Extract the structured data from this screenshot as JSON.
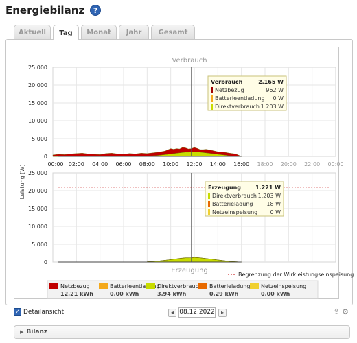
{
  "page": {
    "title": "Energiebilanz",
    "help_icon": "help-icon"
  },
  "tabs": [
    {
      "label": "Aktuell",
      "active": false
    },
    {
      "label": "Tag",
      "active": true
    },
    {
      "label": "Monat",
      "active": false
    },
    {
      "label": "Jahr",
      "active": false
    },
    {
      "label": "Gesamt",
      "active": false
    }
  ],
  "chart": {
    "top_title": "Verbrauch",
    "bottom_title": "Erzeugung",
    "ylabel": "Leistung [W]",
    "y_ticks": [
      "25.000",
      "20.000",
      "15.000",
      "10.000",
      "5.000",
      "0"
    ],
    "x_ticks": [
      "00:00",
      "02:00",
      "04:00",
      "06:00",
      "08:00",
      "10:00",
      "12:00",
      "14:00",
      "16:00",
      "18:00",
      "20:00",
      "22:00",
      "00:00"
    ],
    "limit_label": "Begrenzung der Wirkleistungseinspeisung",
    "limit_value": 21000,
    "cursor_time": "11:45",
    "colors": {
      "netzbezug": "#c00000",
      "batterieentladung": "#f4a91c",
      "direktverbrauch": "#c8dc00",
      "batterieladung": "#e86a00",
      "netzeinspeisung": "#f0d030",
      "limit": "#c00000"
    }
  },
  "tooltip_consumption": {
    "title": "Verbrauch",
    "total": "2.165 W",
    "rows": [
      {
        "label": "Netzbezug",
        "value": "962 W",
        "color": "#a00000"
      },
      {
        "label": "Batterieentladung",
        "value": "0 W",
        "color": "#f4a91c"
      },
      {
        "label": "Direktverbrauch",
        "value": "1.203 W",
        "color": "#c8dc00"
      }
    ]
  },
  "tooltip_generation": {
    "title": "Erzeugung",
    "total": "1.221 W",
    "rows": [
      {
        "label": "Direktverbrauch",
        "value": "1.203 W",
        "color": "#c8dc00"
      },
      {
        "label": "Batterieladung",
        "value": "18 W",
        "color": "#e86a00"
      },
      {
        "label": "Netzeinspeisung",
        "value": "0 W",
        "color": "#f0d030"
      }
    ]
  },
  "legend": [
    {
      "label": "Netzbezug",
      "value": "12,21 kWh",
      "color": "#c00000"
    },
    {
      "label": "Batterieentladung",
      "value": "0,00 kWh",
      "color": "#f4a91c"
    },
    {
      "label": "Direktverbrauch",
      "value": "3,94 kWh",
      "color": "#c8dc00"
    },
    {
      "label": "Batterieladung",
      "value": "0,29 kWh",
      "color": "#e86a00"
    },
    {
      "label": "Netzeinspeisung",
      "value": "0,00 kWh",
      "color": "#f0d030"
    }
  ],
  "chart_data": [
    {
      "type": "area",
      "title": "Verbrauch",
      "ylabel": "Leistung [W]",
      "ylim": [
        0,
        25000
      ],
      "x": [
        "00:00",
        "00:30",
        "01:00",
        "01:30",
        "02:00",
        "02:30",
        "03:00",
        "03:30",
        "04:00",
        "04:30",
        "05:00",
        "05:30",
        "06:00",
        "06:30",
        "07:00",
        "07:30",
        "08:00",
        "08:30",
        "09:00",
        "09:30",
        "10:00",
        "10:15",
        "10:30",
        "10:45",
        "11:00",
        "11:15",
        "11:30",
        "11:45",
        "12:00",
        "12:15",
        "12:30",
        "12:45",
        "13:00",
        "13:30",
        "14:00",
        "14:30",
        "15:00",
        "15:30",
        "16:00"
      ],
      "series": [
        {
          "name": "Direktverbrauch",
          "values": [
            0,
            0,
            0,
            0,
            0,
            0,
            0,
            0,
            0,
            0,
            0,
            0,
            0,
            0,
            0,
            0,
            100,
            200,
            300,
            500,
            700,
            800,
            900,
            1000,
            1100,
            1200,
            1200,
            1203,
            1300,
            1250,
            1200,
            1100,
            1000,
            800,
            600,
            400,
            200,
            100,
            0
          ]
        },
        {
          "name": "Batterieentladung",
          "values": [
            0,
            0,
            0,
            0,
            0,
            0,
            0,
            0,
            0,
            0,
            0,
            0,
            0,
            0,
            0,
            0,
            0,
            0,
            0,
            0,
            0,
            0,
            0,
            0,
            0,
            0,
            0,
            0,
            0,
            0,
            0,
            0,
            0,
            0,
            0,
            0,
            0,
            0,
            0
          ]
        },
        {
          "name": "Netzbezug",
          "values": [
            400,
            600,
            500,
            700,
            800,
            900,
            700,
            600,
            500,
            800,
            900,
            700,
            600,
            800,
            700,
            900,
            700,
            800,
            900,
            1000,
            1500,
            1200,
            1300,
            1100,
            1400,
            1200,
            900,
            962,
            1200,
            1000,
            700,
            800,
            1000,
            900,
            700,
            800,
            700,
            600,
            0
          ]
        }
      ]
    },
    {
      "type": "area",
      "title": "Erzeugung",
      "ylabel": "Leistung [W]",
      "ylim": [
        0,
        25000
      ],
      "x": [
        "08:00",
        "08:30",
        "09:00",
        "09:30",
        "10:00",
        "10:15",
        "10:30",
        "10:45",
        "11:00",
        "11:15",
        "11:30",
        "11:45",
        "12:00",
        "12:15",
        "12:30",
        "12:45",
        "13:00",
        "13:30",
        "14:00",
        "14:30",
        "15:00",
        "15:30",
        "16:00"
      ],
      "series": [
        {
          "name": "Direktverbrauch",
          "values": [
            100,
            200,
            300,
            500,
            700,
            800,
            900,
            1000,
            1100,
            1200,
            1200,
            1203,
            1300,
            1250,
            1200,
            1100,
            1000,
            800,
            600,
            400,
            200,
            100,
            0
          ]
        },
        {
          "name": "Batterieladung",
          "values": [
            0,
            0,
            0,
            0,
            0,
            20,
            40,
            60,
            60,
            40,
            30,
            18,
            40,
            30,
            20,
            20,
            10,
            0,
            0,
            0,
            0,
            0,
            0
          ]
        },
        {
          "name": "Netzeinspeisung",
          "values": [
            0,
            0,
            0,
            0,
            0,
            0,
            0,
            0,
            0,
            0,
            0,
            0,
            0,
            0,
            0,
            0,
            0,
            0,
            0,
            0,
            0,
            0,
            0
          ]
        }
      ]
    }
  ],
  "controls": {
    "detail_label": "Detailansicht",
    "detail_checked": true,
    "date": "08.12.2022",
    "prev_icon": "chevron-left-icon",
    "next_icon": "chevron-right-icon"
  },
  "bilanz": {
    "label": "Bilanz"
  }
}
